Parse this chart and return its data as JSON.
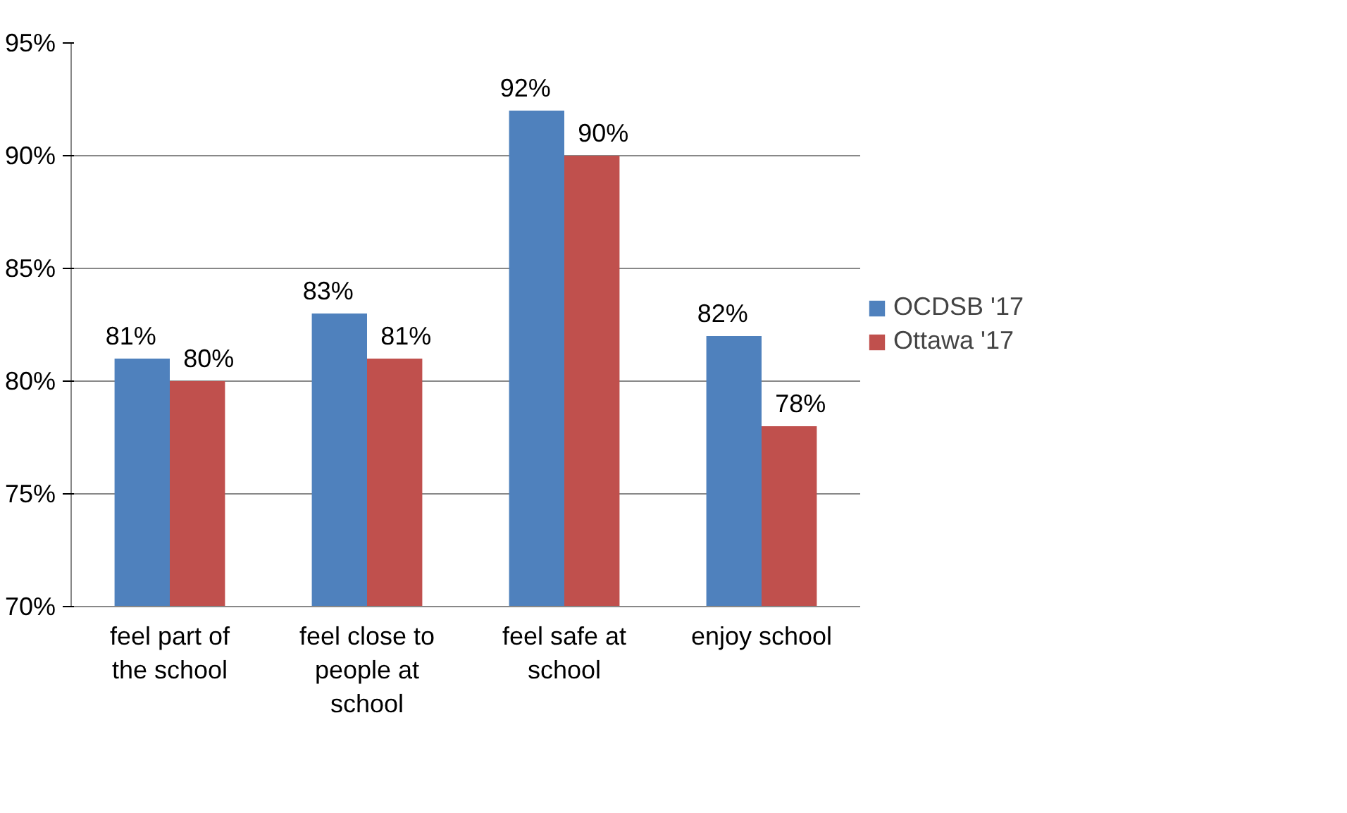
{
  "chart_data": {
    "type": "bar",
    "categories": [
      "feel part of the school",
      "feel close to people at school",
      "feel safe at school",
      "enjoy school"
    ],
    "series": [
      {
        "name": "OCDSB '17",
        "color": "#4f81bd",
        "values": [
          81,
          83,
          92,
          82
        ],
        "value_labels": [
          "81%",
          "83%",
          "92%",
          "82%"
        ]
      },
      {
        "name": "Ottawa '17",
        "color": "#c0504d",
        "values": [
          80,
          81,
          90,
          78
        ],
        "value_labels": [
          "80%",
          "81%",
          "90%",
          "78%"
        ]
      }
    ],
    "ylim": [
      70,
      95
    ],
    "yticks": [
      {
        "value": 70,
        "label": "70%"
      },
      {
        "value": 75,
        "label": "75%"
      },
      {
        "value": 80,
        "label": "80%"
      },
      {
        "value": 85,
        "label": "85%"
      },
      {
        "value": 90,
        "label": "90%"
      },
      {
        "value": 95,
        "label": "95%"
      }
    ],
    "grid": "y",
    "legend": "right"
  }
}
